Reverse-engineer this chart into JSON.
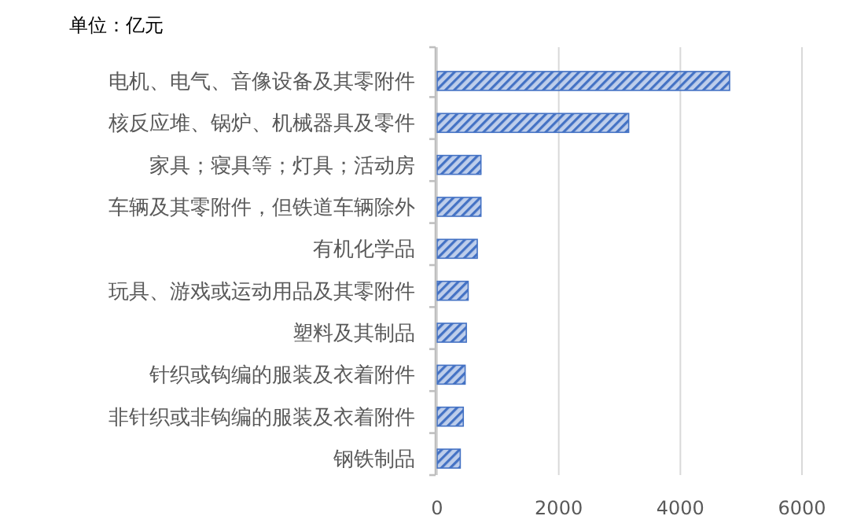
{
  "chart_data": {
    "type": "bar",
    "orientation": "horizontal",
    "title": "单位：亿元",
    "categories": [
      "电机、电气、音像设备及其零附件",
      "核反应堆、锅炉、机械器具及零件",
      "家具；寝具等；灯具；活动房",
      "车辆及其零附件，但铁道车辆除外",
      "有机化学品",
      "玩具、游戏或运动用品及其零附件",
      "塑料及其制品",
      "针织或钩编的服装及衣着附件",
      "非针织或非钩编的服装及衣着附件",
      "钢铁制品"
    ],
    "values": [
      4810,
      3150,
      720,
      720,
      660,
      510,
      480,
      460,
      430,
      380
    ],
    "color": "#4472c4",
    "xlim": [
      0,
      6000
    ],
    "xticks": [
      0,
      2000,
      4000,
      6000
    ],
    "grid": "x"
  }
}
